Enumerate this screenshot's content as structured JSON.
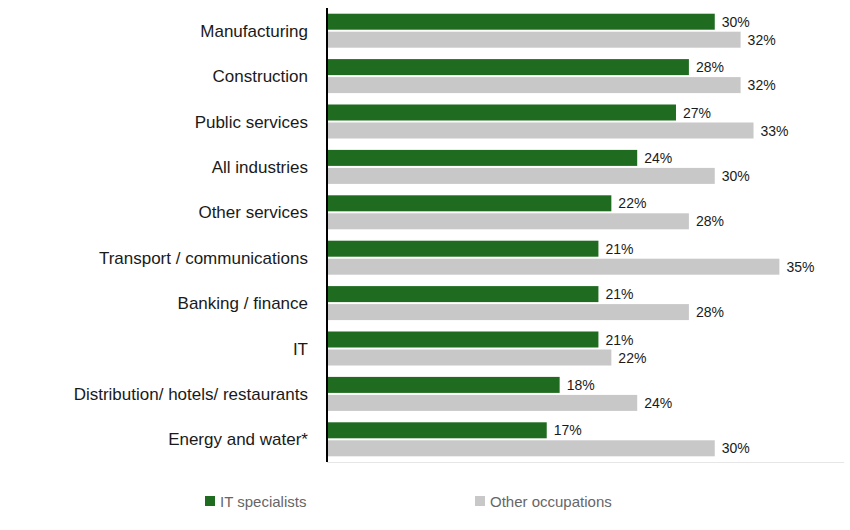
{
  "chart_data": {
    "type": "bar",
    "orientation": "horizontal",
    "categories": [
      "Manufacturing",
      "Construction",
      "Public services",
      "All industries",
      "Other services",
      "Transport / communications",
      "Banking / finance",
      "IT",
      "Distribution/ hotels/ restaurants",
      "Energy and water*"
    ],
    "series": [
      {
        "name": "IT specialists",
        "color": "#1f6b1f",
        "values": [
          30,
          28,
          27,
          24,
          22,
          21,
          21,
          21,
          18,
          17
        ],
        "value_labels": [
          "30%",
          "28%",
          "27%",
          "24%",
          "22%",
          "21%",
          "21%",
          "21%",
          "18%",
          "17%"
        ]
      },
      {
        "name": "Other occupations",
        "color": "#c8c8c8",
        "values": [
          32,
          32,
          33,
          30,
          28,
          35,
          28,
          22,
          24,
          30
        ],
        "value_labels": [
          "32%",
          "32%",
          "33%",
          "30%",
          "28%",
          "35%",
          "28%",
          "22%",
          "24%",
          "30%"
        ]
      }
    ],
    "xlim": [
      0,
      40
    ],
    "tick_labels": "y",
    "data_labels": true,
    "grid": false,
    "legend": "bottom"
  }
}
